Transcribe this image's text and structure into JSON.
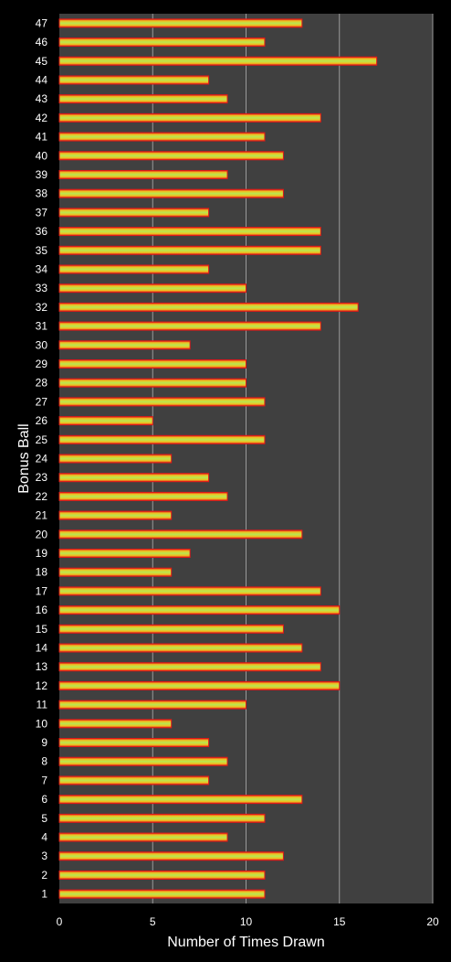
{
  "chart_data": {
    "type": "bar",
    "orientation": "horizontal",
    "title": "",
    "xlabel": "Number of Times Drawn",
    "ylabel": "Bonus Ball",
    "xlim": [
      0,
      20
    ],
    "x_ticks": [
      0,
      5,
      10,
      15,
      20
    ],
    "grid": true,
    "legend": "none",
    "categories": [
      "1",
      "2",
      "3",
      "4",
      "5",
      "6",
      "7",
      "8",
      "9",
      "10",
      "11",
      "12",
      "13",
      "14",
      "15",
      "16",
      "17",
      "18",
      "19",
      "20",
      "21",
      "22",
      "23",
      "24",
      "25",
      "26",
      "27",
      "28",
      "29",
      "30",
      "31",
      "32",
      "33",
      "34",
      "35",
      "36",
      "37",
      "38",
      "39",
      "40",
      "41",
      "42",
      "43",
      "44",
      "45",
      "46",
      "47"
    ],
    "values": [
      11,
      11,
      12,
      9,
      11,
      13,
      8,
      9,
      8,
      6,
      10,
      15,
      14,
      13,
      12,
      15,
      14,
      6,
      7,
      13,
      6,
      9,
      8,
      6,
      11,
      5,
      11,
      10,
      10,
      7,
      14,
      16,
      10,
      8,
      14,
      14,
      8,
      12,
      9,
      12,
      11,
      14,
      9,
      8,
      17,
      11,
      13
    ],
    "colors": {
      "background": "#000000",
      "plot_area": "#404040",
      "gridline": "#9a9a9a",
      "bar_outer": "#e01818",
      "bar_mid": "#f0c020",
      "bar_core": "#b8e850",
      "text": "#ffffff"
    }
  }
}
